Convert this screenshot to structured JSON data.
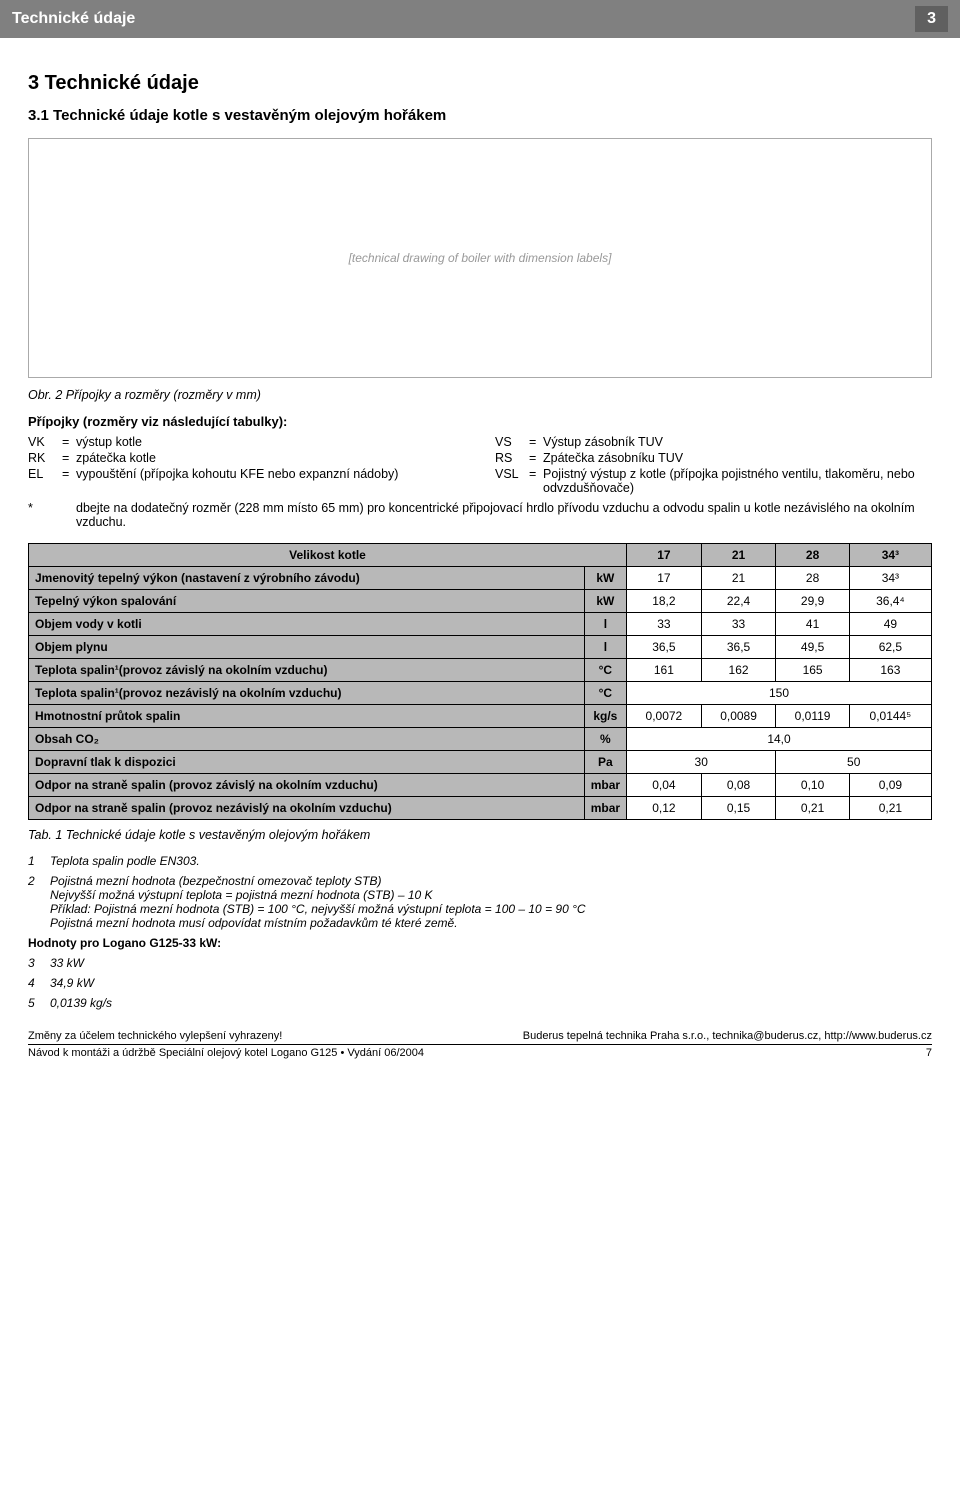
{
  "header": {
    "title": "Technické údaje",
    "chapter_number": "3"
  },
  "section": {
    "number_title": "3   Technické údaje",
    "subsection": "3.1   Technické údaje kotle s vestavěným olejovým hořákem"
  },
  "diagram_placeholder": "[technical drawing of boiler with dimension labels]",
  "figure_caption": "Obr. 2   Přípojky a rozměry (rozměry v mm)",
  "legend": {
    "title": "Přípojky (rozměry viz následující tabulky):",
    "left": [
      {
        "sym": "VK",
        "def": "výstup kotle"
      },
      {
        "sym": "RK",
        "def": "zpátečka kotle"
      },
      {
        "sym": "EL",
        "def": "vypouštění (přípojka kohoutu KFE nebo expanzní nádoby)"
      }
    ],
    "right": [
      {
        "sym": "VS",
        "def": "Výstup zásobník TUV"
      },
      {
        "sym": "RS",
        "def": "Zpátečka zásobníku TUV"
      },
      {
        "sym": "VSL",
        "def": "Pojistný výstup z kotle (přípojka pojistného ventilu, tlakoměru, nebo odvzdušňovače)"
      }
    ],
    "asterisk": {
      "sym": "*",
      "text": "dbejte na dodatečný rozměr (228 mm místo 65 mm) pro koncentrické připojovací hrdlo přívodu vzduchu a odvodu spalin u kotle nezávislého na okolním vzduchu."
    }
  },
  "table": {
    "header_label": "Velikost kotle",
    "cols": [
      "17",
      "21",
      "28",
      "34³"
    ],
    "rows": [
      {
        "label": "Jmenovitý tepelný výkon (nastavení z výrobního závodu)",
        "unit": "kW",
        "v": [
          "17",
          "21",
          "28",
          "34³"
        ]
      },
      {
        "label": "Tepelný výkon spalování",
        "unit": "kW",
        "v": [
          "18,2",
          "22,4",
          "29,9",
          "36,4⁴"
        ]
      },
      {
        "label": "Objem vody v kotli",
        "unit": "l",
        "v": [
          "33",
          "33",
          "41",
          "49"
        ]
      },
      {
        "label": "Objem plynu",
        "unit": "l",
        "v": [
          "36,5",
          "36,5",
          "49,5",
          "62,5"
        ]
      },
      {
        "label": "Teplota spalin¹(provoz závislý na okolním vzduchu)",
        "unit": "°C",
        "v": [
          "161",
          "162",
          "165",
          "163"
        ]
      },
      {
        "label": "Teplota spalin¹(provoz nezávislý na okolním vzduchu)",
        "unit": "°C",
        "span": "150"
      },
      {
        "label": "Hmotnostní průtok spalin",
        "unit": "kg/s",
        "v": [
          "0,0072",
          "0,0089",
          "0,0119",
          "0,0144⁵"
        ]
      },
      {
        "label": "Obsah CO₂",
        "unit": "%",
        "span": "14,0"
      },
      {
        "label": "Dopravní tlak k dispozici",
        "unit": "Pa",
        "v2": [
          "30",
          "50"
        ]
      },
      {
        "label": "Odpor na straně spalin (provoz závislý na okolním vzduchu)",
        "unit": "mbar",
        "v": [
          "0,04",
          "0,08",
          "0,10",
          "0,09"
        ]
      },
      {
        "label": "Odpor na straně spalin (provoz nezávislý na okolním vzduchu)",
        "unit": "mbar",
        "v": [
          "0,12",
          "0,15",
          "0,21",
          "0,21"
        ]
      }
    ]
  },
  "table_caption": "Tab. 1   Technické údaje kotle s vestavěným olejovým hořákem",
  "footnotes": {
    "f1": {
      "num": "1",
      "text": "Teplota spalin podle EN303."
    },
    "f2": {
      "num": "2",
      "line1": "Pojistná mezní hodnota (bezpečnostní omezovač teploty STB)",
      "line2": "Nejvyšší možná výstupní teplota = pojistná mezní hodnota (STB) – 10 K",
      "line3": "Příklad: Pojistná mezní hodnota (STB) = 100 °C, nejvyšší možná výstupní teplota = 100 – 10 = 90 °C",
      "line4": "Pojistná mezní hodnota musí odpovídat místním požadavkům té které země."
    },
    "f_hodnoty": "Hodnoty pro Logano G125-33 kW:",
    "f3": {
      "num": "3",
      "text": "33 kW"
    },
    "f4": {
      "num": "4",
      "text": "34,9 kW"
    },
    "f5": {
      "num": "5",
      "text": "0,0139 kg/s"
    }
  },
  "footer": {
    "left1": "Změny za účelem technického vylepšení vyhrazeny!",
    "right1": "Buderus tepelná technika Praha s.r.o., technika@buderus.cz, http://www.buderus.cz",
    "left2": "Návod k montáži a údržbě  Speciální olejový kotel Logano G125 • Vydání 06/2004",
    "right2": "7"
  },
  "colors": {
    "header_bg": "#808080",
    "table_header_bg": "#b8b8b8"
  }
}
